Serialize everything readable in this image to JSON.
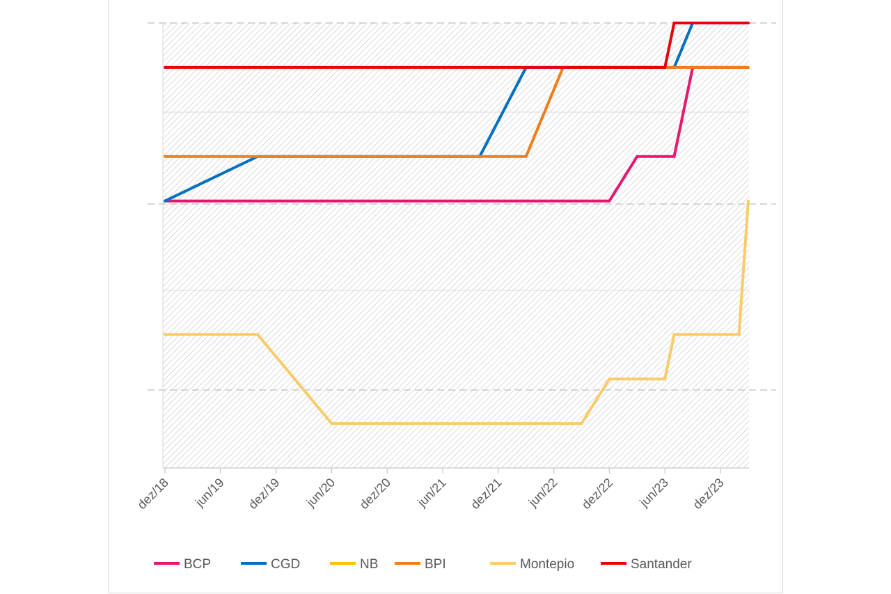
{
  "chart_data": {
    "type": "line",
    "title": "",
    "xlabel": "",
    "ylabel": "",
    "x_ticks": [
      "dez/18",
      "jun/19",
      "dez/19",
      "jun/20",
      "dez/20",
      "jun/21",
      "dez/21",
      "jun/22",
      "dez/22",
      "jun/23",
      "dez/23"
    ],
    "x_range": [
      "2018-12",
      "2024-03"
    ],
    "ylim": [
      0,
      10
    ],
    "y_tick_labels_shown": false,
    "grid": "horizontal, partly dashed",
    "background": "diagonal hatch",
    "legend_position": "bottom",
    "series": [
      {
        "name": "BCP",
        "color": "#E8176E",
        "points": [
          [
            "2018-12",
            6
          ],
          [
            "2022-12",
            6
          ],
          [
            "2023-03",
            7
          ],
          [
            "2023-07",
            7
          ],
          [
            "2023-09",
            9
          ],
          [
            "2024-03",
            9
          ]
        ]
      },
      {
        "name": "CGD",
        "color": "#0070C0",
        "points": [
          [
            "2018-12",
            6
          ],
          [
            "2019-10",
            7
          ],
          [
            "2021-10",
            7
          ],
          [
            "2022-03",
            9
          ],
          [
            "2023-07",
            9
          ],
          [
            "2023-09",
            10
          ],
          [
            "2024-03",
            10
          ]
        ]
      },
      {
        "name": "NB",
        "color": "#FFC000",
        "points": []
      },
      {
        "name": "BPI",
        "color": "#F07D1A",
        "points": [
          [
            "2018-12",
            7
          ],
          [
            "2022-03",
            7
          ],
          [
            "2022-07",
            9
          ],
          [
            "2024-03",
            9
          ]
        ]
      },
      {
        "name": "Montepio",
        "color": "#F9CB6A",
        "points": [
          [
            "2018-12",
            3
          ],
          [
            "2019-10",
            3
          ],
          [
            "2020-06",
            1
          ],
          [
            "2022-09",
            1
          ],
          [
            "2022-12",
            2
          ],
          [
            "2023-06",
            2
          ],
          [
            "2023-07",
            3
          ],
          [
            "2024-02",
            3
          ],
          [
            "2024-03",
            6
          ]
        ]
      },
      {
        "name": "Santander",
        "color": "#E8000B",
        "points": [
          [
            "2018-12",
            9
          ],
          [
            "2023-06",
            9
          ],
          [
            "2023-07",
            10
          ],
          [
            "2024-03",
            10
          ]
        ]
      }
    ]
  }
}
